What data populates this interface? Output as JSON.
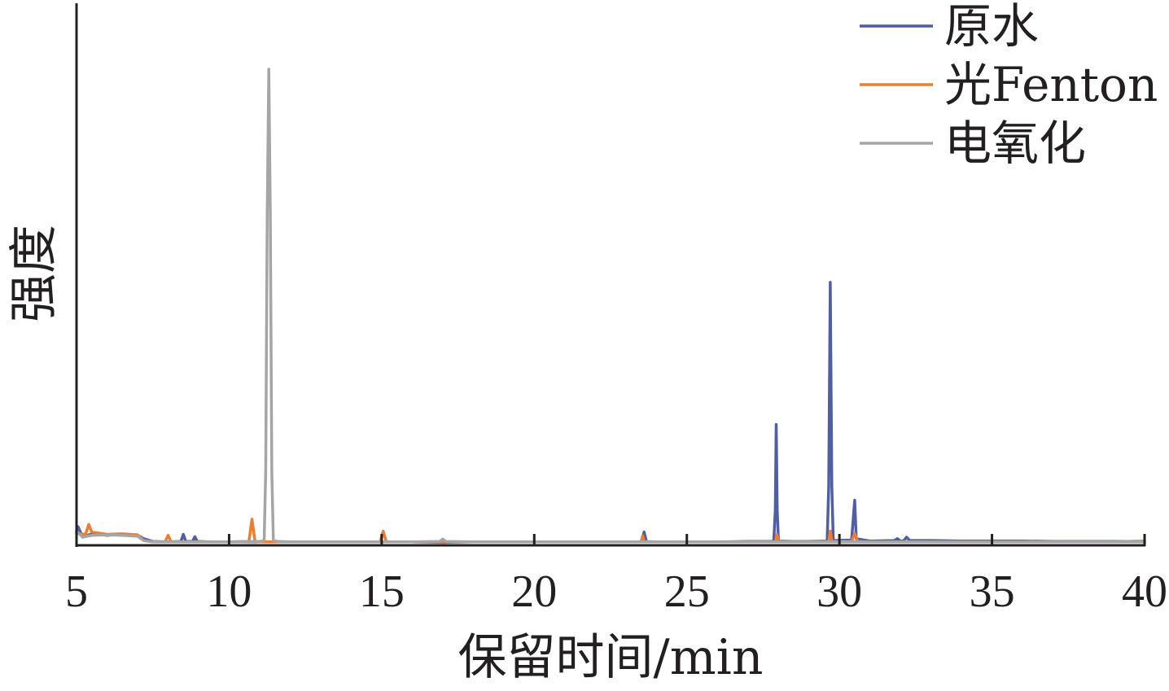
{
  "chart_data": {
    "type": "line",
    "title": "",
    "xlabel": "保留时间/min",
    "ylabel": "强度",
    "xlim": [
      5,
      40
    ],
    "ylim": [
      0,
      100
    ],
    "x_ticks": [
      "5",
      "10",
      "15",
      "20",
      "25",
      "30",
      "35",
      "40"
    ],
    "y_ticks": [],
    "grid": false,
    "legend_position": "top-right",
    "series": [
      {
        "name": "原水",
        "color": "#4e5fa3",
        "points": [
          [
            5.0,
            2.4
          ],
          [
            5.05,
            3.4
          ],
          [
            5.2,
            1.2
          ],
          [
            5.5,
            1.9
          ],
          [
            6.0,
            1.6
          ],
          [
            6.5,
            1.8
          ],
          [
            7.0,
            1.6
          ],
          [
            7.2,
            0.9
          ],
          [
            7.5,
            0.3
          ],
          [
            8.0,
            0.2
          ],
          [
            8.42,
            0.3
          ],
          [
            8.5,
            1.8
          ],
          [
            8.58,
            0.3
          ],
          [
            8.8,
            0.3
          ],
          [
            8.88,
            1.3
          ],
          [
            8.96,
            0.3
          ],
          [
            9.5,
            0.2
          ],
          [
            10.0,
            0.2
          ],
          [
            10.5,
            0.2
          ],
          [
            11.0,
            0.2
          ],
          [
            12.0,
            0.2
          ],
          [
            13.0,
            0.2
          ],
          [
            14.0,
            0.2
          ],
          [
            15.0,
            0.2
          ],
          [
            16.0,
            0.2
          ],
          [
            17.0,
            0.1
          ],
          [
            18.0,
            0.2
          ],
          [
            19.0,
            0.2
          ],
          [
            20.0,
            0.2
          ],
          [
            21.0,
            0.2
          ],
          [
            22.0,
            0.2
          ],
          [
            23.0,
            0.2
          ],
          [
            23.52,
            0.2
          ],
          [
            23.6,
            2.3
          ],
          [
            23.68,
            0.2
          ],
          [
            24.0,
            0.2
          ],
          [
            25.0,
            0.2
          ],
          [
            26.0,
            0.2
          ],
          [
            27.0,
            0.3
          ],
          [
            27.85,
            0.3
          ],
          [
            27.9,
            7.0
          ],
          [
            27.93,
            25.0
          ],
          [
            27.96,
            7.0
          ],
          [
            28.0,
            0.4
          ],
          [
            28.5,
            0.3
          ],
          [
            29.0,
            0.3
          ],
          [
            29.6,
            0.4
          ],
          [
            29.65,
            12.0
          ],
          [
            29.7,
            55.0
          ],
          [
            29.75,
            12.0
          ],
          [
            29.8,
            0.5
          ],
          [
            30.4,
            0.6
          ],
          [
            30.5,
            9.0
          ],
          [
            30.55,
            0.9
          ],
          [
            31.0,
            0.4
          ],
          [
            31.8,
            0.5
          ],
          [
            31.9,
            0.9
          ],
          [
            32.0,
            0.4
          ],
          [
            32.1,
            0.4
          ],
          [
            32.2,
            1.2
          ],
          [
            32.3,
            0.5
          ],
          [
            33.0,
            0.5
          ],
          [
            34.0,
            0.4
          ],
          [
            35.0,
            0.4
          ],
          [
            36.0,
            0.4
          ],
          [
            37.0,
            0.3
          ],
          [
            38.0,
            0.3
          ],
          [
            39.0,
            0.3
          ],
          [
            40.0,
            0.3
          ]
        ]
      },
      {
        "name": "光Fenton",
        "color": "#ed7d31",
        "points": [
          [
            5.0,
            2.0
          ],
          [
            5.3,
            1.8
          ],
          [
            5.4,
            3.9
          ],
          [
            5.5,
            2.3
          ],
          [
            6.0,
            1.8
          ],
          [
            6.5,
            1.9
          ],
          [
            7.0,
            1.7
          ],
          [
            7.2,
            0.5
          ],
          [
            7.5,
            0.2
          ],
          [
            7.9,
            0.2
          ],
          [
            8.0,
            1.6
          ],
          [
            8.1,
            0.2
          ],
          [
            9.0,
            0.2
          ],
          [
            10.0,
            0.2
          ],
          [
            10.65,
            0.3
          ],
          [
            10.75,
            5.0
          ],
          [
            10.85,
            0.3
          ],
          [
            11.0,
            0.2
          ],
          [
            12.0,
            0.2
          ],
          [
            13.0,
            0.2
          ],
          [
            14.0,
            0.2
          ],
          [
            14.95,
            0.2
          ],
          [
            15.05,
            2.5
          ],
          [
            15.15,
            0.2
          ],
          [
            16.0,
            0.2
          ],
          [
            17.0,
            0.2
          ],
          [
            18.0,
            0.2
          ],
          [
            19.0,
            0.2
          ],
          [
            20.0,
            0.2
          ],
          [
            21.0,
            0.2
          ],
          [
            22.0,
            0.2
          ],
          [
            23.0,
            0.2
          ],
          [
            23.5,
            0.2
          ],
          [
            23.55,
            1.5
          ],
          [
            23.6,
            0.3
          ],
          [
            24.0,
            0.2
          ],
          [
            25.0,
            0.2
          ],
          [
            26.0,
            0.2
          ],
          [
            27.0,
            0.2
          ],
          [
            27.9,
            0.2
          ],
          [
            27.95,
            1.8
          ],
          [
            28.0,
            0.3
          ],
          [
            29.0,
            0.2
          ],
          [
            29.65,
            0.3
          ],
          [
            29.7,
            2.5
          ],
          [
            29.75,
            0.3
          ],
          [
            30.4,
            0.3
          ],
          [
            30.5,
            2.0
          ],
          [
            30.6,
            0.3
          ],
          [
            31.0,
            0.2
          ],
          [
            32.0,
            0.2
          ],
          [
            33.0,
            0.2
          ],
          [
            34.0,
            0.2
          ],
          [
            35.0,
            0.2
          ],
          [
            36.0,
            0.2
          ],
          [
            37.0,
            0.2
          ],
          [
            38.0,
            0.2
          ],
          [
            39.0,
            0.2
          ],
          [
            40.0,
            0.4
          ]
        ]
      },
      {
        "name": "电氧化",
        "color": "#a5a5a5",
        "points": [
          [
            5.0,
            2.5
          ],
          [
            5.2,
            1.2
          ],
          [
            5.5,
            1.6
          ],
          [
            6.0,
            1.7
          ],
          [
            6.5,
            1.6
          ],
          [
            7.0,
            1.4
          ],
          [
            7.2,
            0.5
          ],
          [
            7.5,
            0.2
          ],
          [
            8.0,
            0.2
          ],
          [
            9.0,
            0.2
          ],
          [
            10.0,
            0.2
          ],
          [
            11.0,
            0.3
          ],
          [
            11.15,
            0.5
          ],
          [
            11.2,
            15.0
          ],
          [
            11.25,
            70.0
          ],
          [
            11.3,
            100.0
          ],
          [
            11.35,
            70.0
          ],
          [
            11.4,
            15.0
          ],
          [
            11.45,
            0.5
          ],
          [
            11.6,
            0.3
          ],
          [
            12.0,
            0.2
          ],
          [
            13.0,
            0.2
          ],
          [
            14.0,
            0.2
          ],
          [
            15.0,
            0.2
          ],
          [
            16.0,
            0.2
          ],
          [
            16.9,
            0.3
          ],
          [
            17.0,
            0.8
          ],
          [
            17.1,
            0.3
          ],
          [
            18.0,
            0.2
          ],
          [
            19.0,
            0.2
          ],
          [
            20.0,
            0.2
          ],
          [
            21.0,
            0.2
          ],
          [
            22.0,
            0.2
          ],
          [
            23.0,
            0.2
          ],
          [
            24.0,
            0.2
          ],
          [
            25.0,
            0.2
          ],
          [
            26.0,
            0.2
          ],
          [
            27.0,
            0.2
          ],
          [
            28.0,
            0.2
          ],
          [
            29.0,
            0.2
          ],
          [
            30.0,
            0.2
          ],
          [
            31.0,
            0.2
          ],
          [
            32.0,
            0.2
          ],
          [
            33.0,
            0.2
          ],
          [
            34.0,
            0.2
          ],
          [
            35.0,
            0.2
          ],
          [
            36.0,
            0.2
          ],
          [
            37.0,
            0.2
          ],
          [
            38.0,
            0.2
          ],
          [
            39.0,
            0.2
          ],
          [
            40.0,
            0.2
          ]
        ]
      }
    ]
  }
}
